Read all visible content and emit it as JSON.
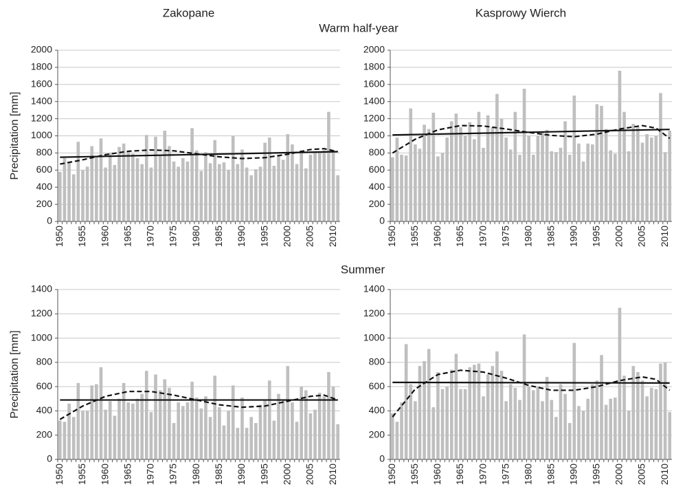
{
  "sections": [
    "Warm half-year",
    "Summer"
  ],
  "chart_data": [
    {
      "type": "bar",
      "title": "Zakopane",
      "ylabel": "Precipitation [mm]",
      "color": "#bfbfbf",
      "grid": true,
      "x": [
        1950,
        1951,
        1952,
        1953,
        1954,
        1955,
        1956,
        1957,
        1958,
        1959,
        1960,
        1961,
        1962,
        1963,
        1964,
        1965,
        1966,
        1967,
        1968,
        1969,
        1970,
        1971,
        1972,
        1973,
        1974,
        1975,
        1976,
        1977,
        1978,
        1979,
        1980,
        1981,
        1982,
        1983,
        1984,
        1985,
        1986,
        1987,
        1988,
        1989,
        1990,
        1991,
        1992,
        1993,
        1994,
        1995,
        1996,
        1997,
        1998,
        1999,
        2000,
        2001,
        2002,
        2003,
        2004,
        2005,
        2006,
        2007,
        2008,
        2009,
        2010,
        2011
      ],
      "values": [
        580,
        740,
        700,
        550,
        930,
        600,
        640,
        880,
        760,
        970,
        630,
        800,
        660,
        870,
        910,
        820,
        790,
        740,
        670,
        1010,
        630,
        990,
        780,
        1060,
        880,
        700,
        640,
        740,
        700,
        1090,
        830,
        590,
        810,
        680,
        950,
        670,
        690,
        600,
        1000,
        670,
        840,
        630,
        540,
        610,
        640,
        920,
        980,
        650,
        780,
        720,
        1020,
        900,
        670,
        830,
        620,
        780,
        800,
        820,
        830,
        1280,
        810,
        540
      ],
      "xlim": [
        1949.5,
        2011.5
      ],
      "xticks": [
        1950,
        1955,
        1960,
        1965,
        1970,
        1975,
        1980,
        1985,
        1990,
        1995,
        2000,
        2005,
        2010
      ],
      "ylim": [
        0,
        2000
      ],
      "yticks": [
        0,
        200,
        400,
        600,
        800,
        1000,
        1200,
        1400,
        1600,
        1800,
        2000
      ],
      "lines": [
        {
          "style": "solid",
          "x": [
            1950,
            2011
          ],
          "values": [
            750,
            815
          ]
        },
        {
          "style": "dashed",
          "x": [
            1950,
            1955,
            1960,
            1965,
            1970,
            1975,
            1980,
            1985,
            1990,
            1995,
            2000,
            2005,
            2008,
            2011
          ],
          "values": [
            670,
            720,
            780,
            820,
            835,
            825,
            790,
            755,
            735,
            745,
            785,
            840,
            850,
            815
          ]
        }
      ]
    },
    {
      "type": "bar",
      "title": "Kasprowy Wierch",
      "color": "#bfbfbf",
      "grid": true,
      "x": [
        1950,
        1951,
        1952,
        1953,
        1954,
        1955,
        1956,
        1957,
        1958,
        1959,
        1960,
        1961,
        1962,
        1963,
        1964,
        1965,
        1966,
        1967,
        1968,
        1969,
        1970,
        1971,
        1972,
        1973,
        1974,
        1975,
        1976,
        1977,
        1978,
        1979,
        1980,
        1981,
        1982,
        1983,
        1984,
        1985,
        1986,
        1987,
        1988,
        1989,
        1990,
        1991,
        1992,
        1993,
        1994,
        1995,
        1996,
        1997,
        1998,
        1999,
        2000,
        2001,
        2002,
        2003,
        2004,
        2005,
        2006,
        2007,
        2008,
        2009,
        2010,
        2011
      ],
      "values": [
        750,
        980,
        780,
        770,
        1320,
        900,
        850,
        1130,
        1080,
        1270,
        760,
        800,
        980,
        1170,
        1260,
        1100,
        1000,
        1160,
        960,
        1280,
        860,
        1240,
        1100,
        1490,
        1200,
        980,
        840,
        1280,
        780,
        1550,
        1000,
        780,
        1000,
        1040,
        1070,
        820,
        810,
        860,
        1170,
        780,
        1470,
        910,
        700,
        910,
        900,
        1370,
        1350,
        1080,
        830,
        790,
        1760,
        1280,
        820,
        1140,
        1100,
        920,
        1020,
        980,
        1000,
        1500,
        810,
        1060
      ],
      "xlim": [
        1949.5,
        2011.5
      ],
      "xticks": [
        1950,
        1955,
        1960,
        1965,
        1970,
        1975,
        1980,
        1985,
        1990,
        1995,
        2000,
        2005,
        2010
      ],
      "ylim": [
        0,
        2000
      ],
      "yticks": [
        0,
        200,
        400,
        600,
        800,
        1000,
        1200,
        1400,
        1600,
        1800,
        2000
      ],
      "lines": [
        {
          "style": "solid",
          "x": [
            1950,
            2011
          ],
          "values": [
            1010,
            1075
          ]
        },
        {
          "style": "dashed",
          "x": [
            1950,
            1955,
            1960,
            1965,
            1970,
            1975,
            1980,
            1985,
            1990,
            1995,
            2000,
            2005,
            2008,
            2011
          ],
          "values": [
            800,
            960,
            1070,
            1120,
            1115,
            1080,
            1040,
            1005,
            990,
            1020,
            1080,
            1120,
            1090,
            970
          ]
        }
      ]
    },
    {
      "type": "bar",
      "ylabel": "Precipitation [mm]",
      "color": "#bfbfbf",
      "grid": true,
      "x": [
        1950,
        1951,
        1952,
        1953,
        1954,
        1955,
        1956,
        1957,
        1958,
        1959,
        1960,
        1961,
        1962,
        1963,
        1964,
        1965,
        1966,
        1967,
        1968,
        1969,
        1970,
        1971,
        1972,
        1973,
        1974,
        1975,
        1976,
        1977,
        1978,
        1979,
        1980,
        1981,
        1982,
        1983,
        1984,
        1985,
        1986,
        1987,
        1988,
        1989,
        1990,
        1991,
        1992,
        1993,
        1994,
        1995,
        1996,
        1997,
        1998,
        1999,
        2000,
        2001,
        2002,
        2003,
        2004,
        2005,
        2006,
        2007,
        2008,
        2009,
        2010,
        2011
      ],
      "values": [
        320,
        310,
        460,
        350,
        630,
        400,
        400,
        610,
        620,
        760,
        410,
        480,
        360,
        500,
        630,
        470,
        460,
        500,
        540,
        730,
        390,
        700,
        570,
        660,
        590,
        300,
        470,
        440,
        470,
        640,
        510,
        420,
        520,
        350,
        690,
        430,
        280,
        400,
        610,
        260,
        510,
        260,
        350,
        300,
        450,
        490,
        650,
        320,
        540,
        490,
        770,
        470,
        310,
        600,
        570,
        380,
        410,
        550,
        520,
        720,
        600,
        290
      ],
      "xlim": [
        1949.5,
        2011.5
      ],
      "xticks": [
        1950,
        1955,
        1960,
        1965,
        1970,
        1975,
        1980,
        1985,
        1990,
        1995,
        2000,
        2005,
        2010
      ],
      "ylim": [
        0,
        1400
      ],
      "yticks": [
        0,
        200,
        400,
        600,
        800,
        1000,
        1200,
        1400
      ],
      "lines": [
        {
          "style": "solid",
          "x": [
            1950,
            2011
          ],
          "values": [
            490,
            490
          ]
        },
        {
          "style": "dashed",
          "x": [
            1950,
            1955,
            1960,
            1965,
            1970,
            1975,
            1980,
            1985,
            1990,
            1995,
            2000,
            2005,
            2008,
            2011
          ],
          "values": [
            330,
            440,
            520,
            560,
            560,
            530,
            490,
            450,
            430,
            440,
            480,
            520,
            530,
            490
          ]
        }
      ]
    },
    {
      "type": "bar",
      "color": "#bfbfbf",
      "grid": true,
      "x": [
        1950,
        1951,
        1952,
        1953,
        1954,
        1955,
        1956,
        1957,
        1958,
        1959,
        1960,
        1961,
        1962,
        1963,
        1964,
        1965,
        1966,
        1967,
        1968,
        1969,
        1970,
        1971,
        1972,
        1973,
        1974,
        1975,
        1976,
        1977,
        1978,
        1979,
        1980,
        1981,
        1982,
        1983,
        1984,
        1985,
        1986,
        1987,
        1988,
        1989,
        1990,
        1991,
        1992,
        1993,
        1994,
        1995,
        1996,
        1997,
        1998,
        1999,
        2000,
        2001,
        2002,
        2003,
        2004,
        2005,
        2006,
        2007,
        2008,
        2009,
        2010,
        2011
      ],
      "values": [
        380,
        310,
        470,
        950,
        620,
        480,
        770,
        810,
        910,
        430,
        720,
        580,
        600,
        740,
        870,
        580,
        580,
        760,
        780,
        790,
        520,
        700,
        770,
        890,
        730,
        480,
        620,
        590,
        490,
        1030,
        600,
        570,
        600,
        480,
        680,
        490,
        350,
        620,
        540,
        300,
        960,
        440,
        400,
        500,
        620,
        650,
        860,
        450,
        500,
        510,
        1250,
        690,
        400,
        770,
        720,
        650,
        520,
        590,
        580,
        790,
        800,
        390
      ],
      "xlim": [
        1949.5,
        2011.5
      ],
      "xticks": [
        1950,
        1955,
        1960,
        1965,
        1970,
        1975,
        1980,
        1985,
        1990,
        1995,
        2000,
        2005,
        2010
      ],
      "ylim": [
        0,
        1400
      ],
      "yticks": [
        0,
        200,
        400,
        600,
        800,
        1000,
        1200,
        1400
      ],
      "lines": [
        {
          "style": "solid",
          "x": [
            1950,
            2011
          ],
          "values": [
            635,
            630
          ]
        },
        {
          "style": "dashed",
          "x": [
            1950,
            1955,
            1960,
            1965,
            1970,
            1975,
            1980,
            1985,
            1990,
            1995,
            2000,
            2005,
            2008,
            2011
          ],
          "values": [
            350,
            580,
            700,
            735,
            720,
            670,
            610,
            570,
            570,
            600,
            650,
            680,
            660,
            570
          ]
        }
      ]
    }
  ]
}
